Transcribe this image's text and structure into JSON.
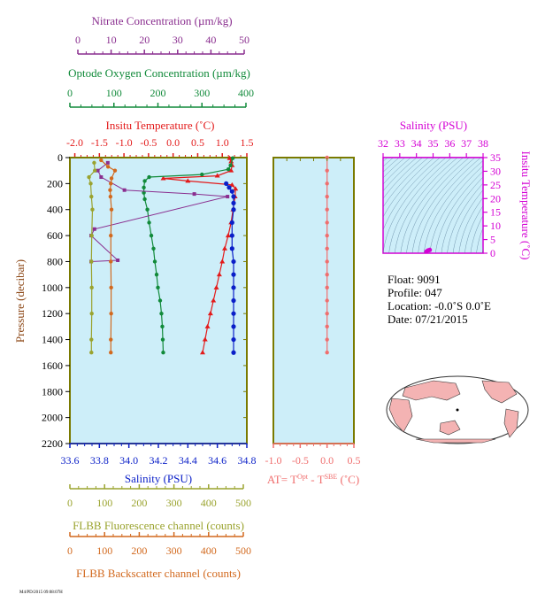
{
  "colors": {
    "plot_bg": "#cdeef9",
    "nitrate": "#8a2e8f",
    "oxygen": "#118a3a",
    "temperature": "#e31a1a",
    "salinity": "#0a1fc8",
    "delta_t": "#f06e6e",
    "fluorescence": "#9aa32e",
    "backscatter": "#d2691e",
    "ts_axis": "#d400d4",
    "contour": "#5a7f9a",
    "land": "#f4b3b3",
    "ocean": "#ffffff"
  },
  "axes": {
    "nitrate": {
      "label": "Nitrate Concentration (µm/kg)",
      "min": 0,
      "max": 50,
      "ticks": [
        "0",
        "10",
        "20",
        "30",
        "40",
        "50"
      ]
    },
    "oxygen": {
      "label": "Optode Oxygen Concentration (µm/kg)",
      "min": 0,
      "max": 400,
      "ticks": [
        "0",
        "100",
        "200",
        "300",
        "400"
      ]
    },
    "temperature": {
      "label": "Insitu Temperature (˚C)",
      "min": -2.1,
      "max": 1.5,
      "ticks": [
        "-2.0",
        "-1.5",
        "-1.0",
        "-0.5",
        "0.0",
        "0.5",
        "1.0",
        "1.5"
      ]
    },
    "pressure": {
      "label": "Pressure (decibar)",
      "min": 0,
      "max": 2200,
      "ticks": [
        "0",
        "200",
        "400",
        "600",
        "800",
        "1000",
        "1200",
        "1400",
        "1600",
        "1800",
        "2000",
        "2200"
      ]
    },
    "salinity": {
      "label": "Salinity (PSU)",
      "min": 33.6,
      "max": 34.8,
      "ticks": [
        "33.6",
        "33.8",
        "34.0",
        "34.2",
        "34.4",
        "34.6",
        "34.8"
      ]
    },
    "fluorescence": {
      "label": "FLBB Fluorescence channel (counts)",
      "min": 0,
      "max": 500,
      "ticks": [
        "0",
        "100",
        "200",
        "300",
        "400",
        "500"
      ]
    },
    "backscatter": {
      "label": "FLBB Backscatter channel (counts)",
      "min": 0,
      "max": 500,
      "ticks": [
        "0",
        "100",
        "200",
        "300",
        "400",
        "500"
      ]
    },
    "delta_t": {
      "label_main": "AT= T",
      "label_sup1": "Opt",
      "label_mid": " - T",
      "label_sup2": "SBE",
      "label_tail": " (˚C)",
      "min": -1.0,
      "max": 0.5,
      "ticks": [
        "-1.0",
        "-0.5",
        "0.0",
        "0.5"
      ]
    },
    "ts_salinity": {
      "label": "Salinity (PSU)",
      "min": 32,
      "max": 38,
      "ticks": [
        "32",
        "33",
        "34",
        "35",
        "36",
        "37",
        "38"
      ]
    },
    "ts_temperature": {
      "label": "Insitu Temperature (˚C)",
      "min": 0,
      "max": 35,
      "ticks": [
        "0",
        "5",
        "10",
        "15",
        "20",
        "25",
        "30",
        "35"
      ]
    }
  },
  "info": {
    "float": "Float:  9091",
    "profile": "Profile:  047",
    "location": "Location:  -0.0˚S   0.0˚E",
    "date": "Date:  07/21/2015"
  },
  "footer_tag": "M4/PD/2015 09:08:07H",
  "chart_data": {
    "type": "line",
    "y_axis": "pressure",
    "series": [
      {
        "key": "temperature",
        "points": [
          [
            1.15,
            5
          ],
          [
            1.18,
            30
          ],
          [
            1.2,
            60
          ],
          [
            1.18,
            100
          ],
          [
            0.9,
            140
          ],
          [
            -0.2,
            160
          ],
          [
            0.3,
            180
          ],
          [
            1.2,
            210
          ],
          [
            1.27,
            240
          ],
          [
            1.26,
            300
          ],
          [
            1.22,
            400
          ],
          [
            1.18,
            500
          ],
          [
            1.12,
            600
          ],
          [
            1.05,
            700
          ],
          [
            1.0,
            800
          ],
          [
            0.94,
            900
          ],
          [
            0.88,
            1000
          ],
          [
            0.82,
            1100
          ],
          [
            0.76,
            1200
          ],
          [
            0.7,
            1300
          ],
          [
            0.65,
            1400
          ],
          [
            0.6,
            1500
          ]
        ]
      },
      {
        "key": "salinity",
        "points": [
          [
            34.66,
            200
          ],
          [
            34.68,
            230
          ],
          [
            34.7,
            260
          ],
          [
            34.71,
            300
          ],
          [
            34.71,
            350
          ],
          [
            34.71,
            400
          ],
          [
            34.7,
            500
          ],
          [
            34.7,
            600
          ],
          [
            34.7,
            700
          ],
          [
            34.71,
            800
          ],
          [
            34.71,
            900
          ],
          [
            34.71,
            1000
          ],
          [
            34.71,
            1100
          ],
          [
            34.71,
            1200
          ],
          [
            34.71,
            1300
          ],
          [
            34.71,
            1400
          ],
          [
            34.71,
            1500
          ]
        ]
      },
      {
        "key": "oxygen",
        "points": [
          [
            370,
            5
          ],
          [
            365,
            60
          ],
          [
            360,
            90
          ],
          [
            300,
            130
          ],
          [
            180,
            150
          ],
          [
            170,
            180
          ],
          [
            168,
            230
          ],
          [
            168,
            270
          ],
          [
            170,
            320
          ],
          [
            176,
            400
          ],
          [
            180,
            500
          ],
          [
            185,
            600
          ],
          [
            190,
            700
          ],
          [
            193,
            800
          ],
          [
            197,
            900
          ],
          [
            200,
            1000
          ],
          [
            205,
            1100
          ],
          [
            208,
            1200
          ],
          [
            210,
            1300
          ],
          [
            211,
            1400
          ],
          [
            212,
            1500
          ]
        ]
      },
      {
        "key": "nitrate",
        "points": [
          [
            9,
            40
          ],
          [
            6,
            100
          ],
          [
            7,
            150
          ],
          [
            14,
            250
          ],
          [
            35,
            280
          ],
          [
            45,
            300
          ],
          [
            5,
            550
          ],
          [
            4,
            600
          ],
          [
            12,
            790
          ],
          [
            4,
            800
          ]
        ]
      },
      {
        "key": "fluorescence",
        "points": [
          [
            70,
            40
          ],
          [
            72,
            100
          ],
          [
            55,
            150
          ],
          [
            60,
            200
          ],
          [
            62,
            300
          ],
          [
            65,
            400
          ],
          [
            63,
            600
          ],
          [
            62,
            800
          ],
          [
            63,
            1000
          ],
          [
            63,
            1200
          ],
          [
            62,
            1400
          ],
          [
            62,
            1500
          ]
        ]
      },
      {
        "key": "backscatter",
        "points": [
          [
            90,
            20
          ],
          [
            110,
            70
          ],
          [
            130,
            100
          ],
          [
            120,
            160
          ],
          [
            118,
            200
          ],
          [
            116,
            250
          ],
          [
            117,
            300
          ],
          [
            120,
            400
          ],
          [
            118,
            600
          ],
          [
            118,
            800
          ],
          [
            119,
            1000
          ],
          [
            119,
            1200
          ],
          [
            118,
            1400
          ],
          [
            118,
            1500
          ]
        ]
      },
      {
        "key": "delta_t",
        "points": [
          [
            0.0,
            0
          ],
          [
            0.0,
            100
          ],
          [
            0.0,
            200
          ],
          [
            0.0,
            300
          ],
          [
            0.0,
            400
          ],
          [
            0.0,
            500
          ],
          [
            0.0,
            600
          ],
          [
            0.0,
            700
          ],
          [
            0.0,
            800
          ],
          [
            0.0,
            900
          ],
          [
            0.0,
            1000
          ],
          [
            0.0,
            1100
          ],
          [
            0.0,
            1200
          ],
          [
            0.0,
            1300
          ],
          [
            0.0,
            1400
          ],
          [
            0.0,
            1500
          ]
        ]
      }
    ],
    "ts_points": [
      [
        34.7,
        1.0
      ],
      [
        34.8,
        1.2
      ],
      [
        34.6,
        0.6
      ]
    ]
  }
}
